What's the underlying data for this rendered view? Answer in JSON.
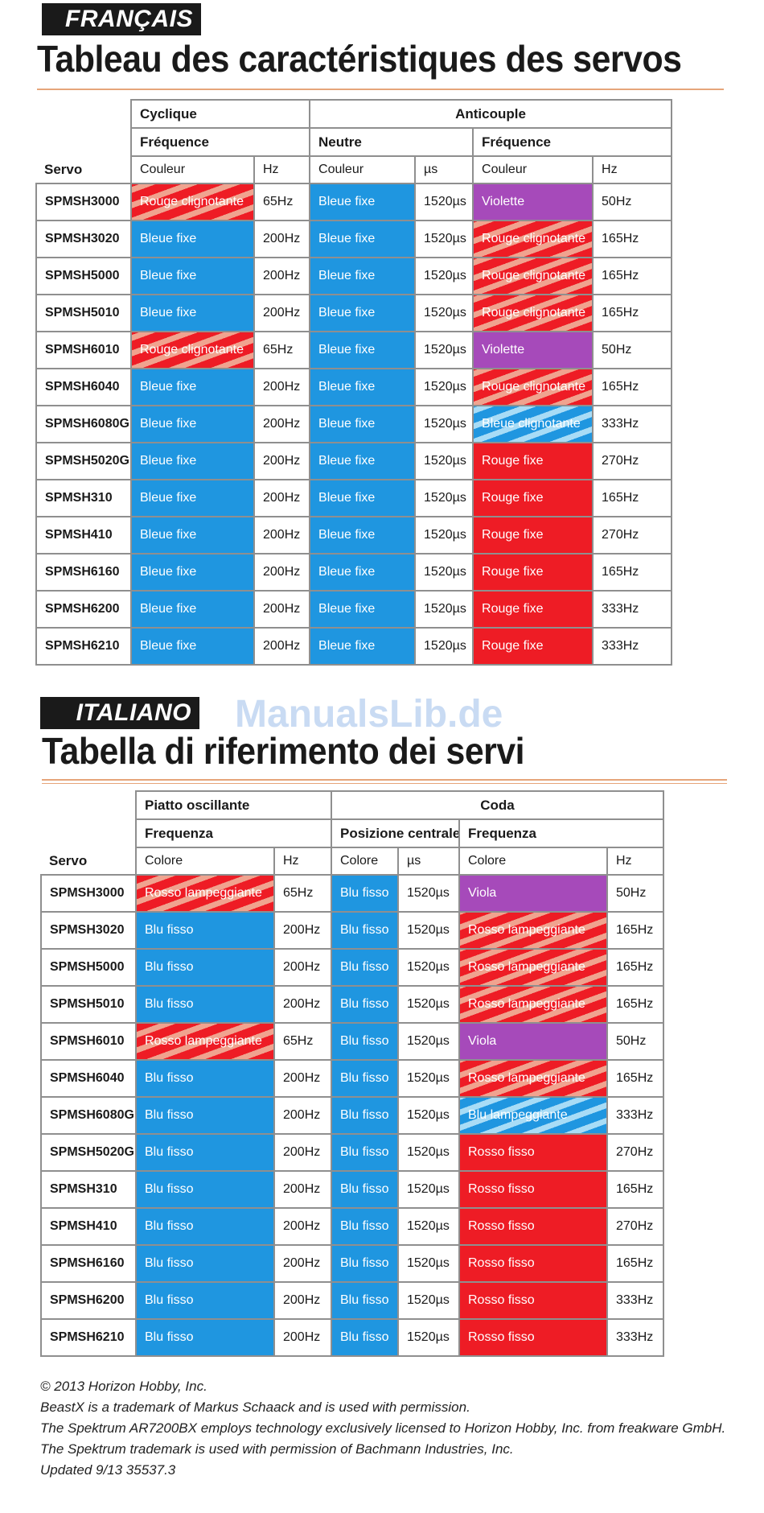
{
  "sections": [
    {
      "language": "FRANÇAIS",
      "title": "Tableau des caractéristiques des servos",
      "group1": "Cyclique",
      "group2": "Anticouple",
      "sub1": "Fréquence",
      "sub2": "Neutre",
      "sub3": "Fréquence",
      "col_servo": "Servo",
      "col_color": "Couleur",
      "col_hz": "Hz",
      "col_us": "µs",
      "rows": [
        [
          "SPMSH3000",
          "Rouge clignotante",
          "65Hz",
          "Bleue fixe",
          "1520µs",
          "Violette",
          "50Hz"
        ],
        [
          "SPMSH3020",
          "Bleue fixe",
          "200Hz",
          "Bleue fixe",
          "1520µs",
          "Rouge clignotante",
          "165Hz"
        ],
        [
          "SPMSH5000",
          "Bleue fixe",
          "200Hz",
          "Bleue fixe",
          "1520µs",
          "Rouge clignotante",
          "165Hz"
        ],
        [
          "SPMSH5010",
          "Bleue fixe",
          "200Hz",
          "Bleue fixe",
          "1520µs",
          "Rouge clignotante",
          "165Hz"
        ],
        [
          "SPMSH6010",
          "Rouge clignotante",
          "65Hz",
          "Bleue fixe",
          "1520µs",
          "Violette",
          "50Hz"
        ],
        [
          "SPMSH6040",
          "Bleue fixe",
          "200Hz",
          "Bleue fixe",
          "1520µs",
          "Rouge clignotante",
          "165Hz"
        ],
        [
          "SPMSH6080G",
          "Bleue fixe",
          "200Hz",
          "Bleue fixe",
          "1520µs",
          "Bleue clignotante",
          "333Hz"
        ],
        [
          "SPMSH5020G",
          "Bleue fixe",
          "200Hz",
          "Bleue fixe",
          "1520µs",
          "Rouge fixe",
          "270Hz"
        ],
        [
          "SPMSH310",
          "Bleue fixe",
          "200Hz",
          "Bleue fixe",
          "1520µs",
          "Rouge fixe",
          "165Hz"
        ],
        [
          "SPMSH410",
          "Bleue fixe",
          "200Hz",
          "Bleue fixe",
          "1520µs",
          "Rouge fixe",
          "270Hz"
        ],
        [
          "SPMSH6160",
          "Bleue fixe",
          "200Hz",
          "Bleue fixe",
          "1520µs",
          "Rouge fixe",
          "165Hz"
        ],
        [
          "SPMSH6200",
          "Bleue fixe",
          "200Hz",
          "Bleue fixe",
          "1520µs",
          "Rouge fixe",
          "333Hz"
        ],
        [
          "SPMSH6210",
          "Bleue fixe",
          "200Hz",
          "Bleue fixe",
          "1520µs",
          "Rouge fixe",
          "333Hz"
        ]
      ]
    },
    {
      "language": "ITALIANO",
      "title": "Tabella di riferimento dei servi",
      "group1": "Piatto oscillante",
      "group2": "Coda",
      "sub1": "Frequenza",
      "sub2": "Posizione centrale",
      "sub3": "Frequenza",
      "col_servo": "Servo",
      "col_color": "Colore",
      "col_hz": "Hz",
      "col_us": "µs",
      "rows": [
        [
          "SPMSH3000",
          "Rosso lampeggiante",
          "65Hz",
          "Blu fisso",
          "1520µs",
          "Viola",
          "50Hz"
        ],
        [
          "SPMSH3020",
          "Blu fisso",
          "200Hz",
          "Blu fisso",
          "1520µs",
          "Rosso lampeggiante",
          "165Hz"
        ],
        [
          "SPMSH5000",
          "Blu fisso",
          "200Hz",
          "Blu fisso",
          "1520µs",
          "Rosso lampeggiante",
          "165Hz"
        ],
        [
          "SPMSH5010",
          "Blu fisso",
          "200Hz",
          "Blu fisso",
          "1520µs",
          "Rosso lampeggiante",
          "165Hz"
        ],
        [
          "SPMSH6010",
          "Rosso lampeggiante",
          "65Hz",
          "Blu fisso",
          "1520µs",
          "Viola",
          "50Hz"
        ],
        [
          "SPMSH6040",
          "Blu fisso",
          "200Hz",
          "Blu fisso",
          "1520µs",
          "Rosso lampeggiante",
          "165Hz"
        ],
        [
          "SPMSH6080G",
          "Blu fisso",
          "200Hz",
          "Blu fisso",
          "1520µs",
          "Blu lampeggiante",
          "333Hz"
        ],
        [
          "SPMSH5020G",
          "Blu fisso",
          "200Hz",
          "Blu fisso",
          "1520µs",
          "Rosso fisso",
          "270Hz"
        ],
        [
          "SPMSH310",
          "Blu fisso",
          "200Hz",
          "Blu fisso",
          "1520µs",
          "Rosso fisso",
          "165Hz"
        ],
        [
          "SPMSH410",
          "Blu fisso",
          "200Hz",
          "Blu fisso",
          "1520µs",
          "Rosso fisso",
          "270Hz"
        ],
        [
          "SPMSH6160",
          "Blu fisso",
          "200Hz",
          "Blu fisso",
          "1520µs",
          "Rosso fisso",
          "165Hz"
        ],
        [
          "SPMSH6200",
          "Blu fisso",
          "200Hz",
          "Blu fisso",
          "1520µs",
          "Rosso fisso",
          "333Hz"
        ],
        [
          "SPMSH6210",
          "Blu fisso",
          "200Hz",
          "Blu fisso",
          "1520µs",
          "Rosso fisso",
          "333Hz"
        ]
      ]
    }
  ],
  "cell_colors": {
    "Rouge clignotante": "red-flashing",
    "Rosso lampeggiante": "red-flashing",
    "Bleue fixe": "blue",
    "Blu fisso": "blue",
    "Violette": "violet",
    "Viola": "violet",
    "Bleue clignotante": "blue-flashing",
    "Blu lampeggiante": "blue-flashing",
    "Rouge fixe": "red",
    "Rosso fisso": "red"
  },
  "palette": {
    "blue": "#1f96e0",
    "red": "#ee1c25",
    "violet": "#a64aba",
    "stripe_light_red": "#f0a38f",
    "stripe_light_blue": "#a8dcf6",
    "rule": "#e6a57a"
  },
  "watermark": "ManualsLib.de",
  "footer": [
    "© 2013 Horizon Hobby, Inc.",
    "BeastX is a trademark of Markus Schaack and is used with permission.",
    "The Spektrum AR7200BX employs technology exclusively licensed to Horizon Hobby, Inc. from freakware GmbH.",
    "The Spektrum trademark is used with permission of Bachmann Industries, Inc.",
    "Updated 9/13     35537.3"
  ]
}
